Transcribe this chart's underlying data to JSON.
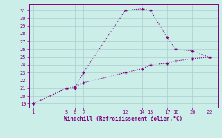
{
  "xlabel": "Windchill (Refroidissement éolien,°C)",
  "background_color": "#cceee8",
  "line_color": "#800080",
  "grid_color": "#aacccc",
  "line1_x": [
    1,
    5,
    6,
    7,
    12,
    14,
    15,
    17,
    18,
    20,
    22
  ],
  "line1_y": [
    19,
    21,
    21,
    23,
    31,
    31.2,
    31,
    27.5,
    26,
    25.8,
    25
  ],
  "line2_x": [
    1,
    5,
    6,
    7,
    12,
    14,
    15,
    17,
    18,
    20,
    22
  ],
  "line2_y": [
    19,
    21,
    21.2,
    21.7,
    23,
    23.5,
    24,
    24.2,
    24.5,
    24.8,
    25
  ],
  "xticks": [
    1,
    5,
    6,
    7,
    12,
    14,
    15,
    17,
    18,
    20,
    22
  ],
  "yticks": [
    19,
    20,
    21,
    22,
    23,
    24,
    25,
    26,
    27,
    28,
    29,
    30,
    31
  ],
  "xlim": [
    0.5,
    23
  ],
  "ylim": [
    18.5,
    31.8
  ],
  "markersize": 3,
  "linewidth": 0.8,
  "tick_fontsize": 5,
  "xlabel_fontsize": 5.5
}
